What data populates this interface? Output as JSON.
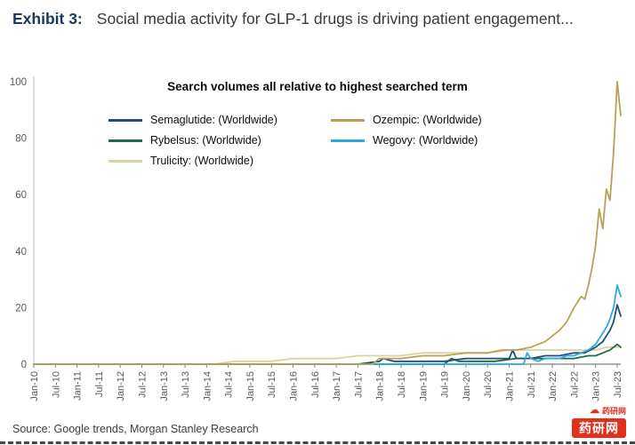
{
  "header": {
    "exhibit_label": "Exhibit 3:",
    "title": "Social media activity for GLP-1 drugs is driving patient engagement..."
  },
  "source_line": "Source: Google trends, Morgan Stanley Research",
  "watermark": {
    "brand_small": "药研网",
    "badge_text": "药研网"
  },
  "chart_data": {
    "type": "line",
    "title": "Search volumes all relative to highest searched term",
    "grid": false,
    "legend_position": "top-center-two-columns",
    "ylim": [
      0,
      100
    ],
    "y_ticks": [
      0,
      20,
      40,
      60,
      80,
      100
    ],
    "x_unit": "month",
    "x_range_months": [
      0,
      163
    ],
    "x_tick_month_step": 6,
    "x_tick_labels": [
      "Jan-10",
      "Jul-10",
      "Jan-11",
      "Jul-11",
      "Jan-12",
      "Jul-12",
      "Jan-13",
      "Jul-13",
      "Jan-14",
      "Jul-14",
      "Jan-15",
      "Jul-15",
      "Jan-16",
      "Jul-16",
      "Jan-17",
      "Jul-17",
      "Jan-18",
      "Jul-18",
      "Jan-19",
      "Jul-19",
      "Jan-20",
      "Jul-20",
      "Jan-21",
      "Jul-21",
      "Jan-22",
      "Jul-22",
      "Jan-23",
      "Jul-23"
    ],
    "series": [
      {
        "name": "Semaglutide: (Worldwide)",
        "color": "#1f4e79",
        "points": [
          [
            0,
            0
          ],
          [
            48,
            0
          ],
          [
            90,
            0
          ],
          [
            96,
            1
          ],
          [
            97,
            2
          ],
          [
            100,
            1
          ],
          [
            104,
            1
          ],
          [
            108,
            1
          ],
          [
            114,
            1
          ],
          [
            120,
            2
          ],
          [
            126,
            2
          ],
          [
            132,
            2
          ],
          [
            133,
            5
          ],
          [
            134,
            2
          ],
          [
            138,
            2
          ],
          [
            142,
            3
          ],
          [
            146,
            3
          ],
          [
            150,
            4
          ],
          [
            153,
            4
          ],
          [
            156,
            6
          ],
          [
            157,
            7
          ],
          [
            158,
            8
          ],
          [
            159,
            10
          ],
          [
            160,
            12
          ],
          [
            161,
            15
          ],
          [
            162,
            21
          ],
          [
            163,
            17
          ]
        ]
      },
      {
        "name": "Ozempic: (Worldwide)",
        "color": "#b9a157",
        "points": [
          [
            0,
            0
          ],
          [
            48,
            0
          ],
          [
            84,
            0
          ],
          [
            94,
            0
          ],
          [
            96,
            2
          ],
          [
            98,
            2
          ],
          [
            102,
            2
          ],
          [
            108,
            3
          ],
          [
            114,
            3
          ],
          [
            120,
            4
          ],
          [
            126,
            4
          ],
          [
            130,
            5
          ],
          [
            134,
            5
          ],
          [
            138,
            6
          ],
          [
            140,
            7
          ],
          [
            142,
            8
          ],
          [
            144,
            10
          ],
          [
            146,
            12
          ],
          [
            148,
            15
          ],
          [
            150,
            20
          ],
          [
            151,
            22
          ],
          [
            152,
            24
          ],
          [
            153,
            23
          ],
          [
            154,
            28
          ],
          [
            155,
            34
          ],
          [
            156,
            42
          ],
          [
            157,
            55
          ],
          [
            158,
            48
          ],
          [
            159,
            62
          ],
          [
            160,
            58
          ],
          [
            161,
            75
          ],
          [
            162,
            100
          ],
          [
            163,
            88
          ]
        ]
      },
      {
        "name": "Rybelsus: (Worldwide)",
        "color": "#1e6b4a",
        "points": [
          [
            0,
            0
          ],
          [
            100,
            0
          ],
          [
            114,
            0
          ],
          [
            116,
            2
          ],
          [
            118,
            1
          ],
          [
            122,
            1
          ],
          [
            128,
            1
          ],
          [
            134,
            2
          ],
          [
            140,
            2
          ],
          [
            146,
            2
          ],
          [
            150,
            2
          ],
          [
            154,
            3
          ],
          [
            156,
            3
          ],
          [
            158,
            4
          ],
          [
            160,
            5
          ],
          [
            162,
            7
          ],
          [
            163,
            6
          ]
        ]
      },
      {
        "name": "Wegovy: (Worldwide)",
        "color": "#29abe2",
        "points": [
          [
            0,
            0
          ],
          [
            100,
            0
          ],
          [
            130,
            0
          ],
          [
            136,
            0
          ],
          [
            137,
            4
          ],
          [
            138,
            2
          ],
          [
            140,
            1
          ],
          [
            142,
            2
          ],
          [
            144,
            2
          ],
          [
            146,
            2
          ],
          [
            148,
            3
          ],
          [
            150,
            3
          ],
          [
            152,
            4
          ],
          [
            154,
            5
          ],
          [
            156,
            7
          ],
          [
            157,
            9
          ],
          [
            158,
            11
          ],
          [
            159,
            13
          ],
          [
            160,
            16
          ],
          [
            161,
            20
          ],
          [
            162,
            28
          ],
          [
            163,
            24
          ]
        ]
      },
      {
        "name": "Trulicity: (Worldwide)",
        "color": "#ded2a0",
        "points": [
          [
            0,
            0
          ],
          [
            50,
            0
          ],
          [
            56,
            1
          ],
          [
            60,
            1
          ],
          [
            66,
            1
          ],
          [
            72,
            2
          ],
          [
            78,
            2
          ],
          [
            84,
            2
          ],
          [
            90,
            3
          ],
          [
            96,
            3
          ],
          [
            102,
            3
          ],
          [
            108,
            4
          ],
          [
            114,
            4
          ],
          [
            120,
            4
          ],
          [
            126,
            4
          ],
          [
            132,
            5
          ],
          [
            138,
            5
          ],
          [
            144,
            5
          ],
          [
            150,
            5
          ],
          [
            156,
            5
          ],
          [
            159,
            6
          ],
          [
            162,
            6
          ],
          [
            163,
            6
          ]
        ]
      }
    ]
  }
}
